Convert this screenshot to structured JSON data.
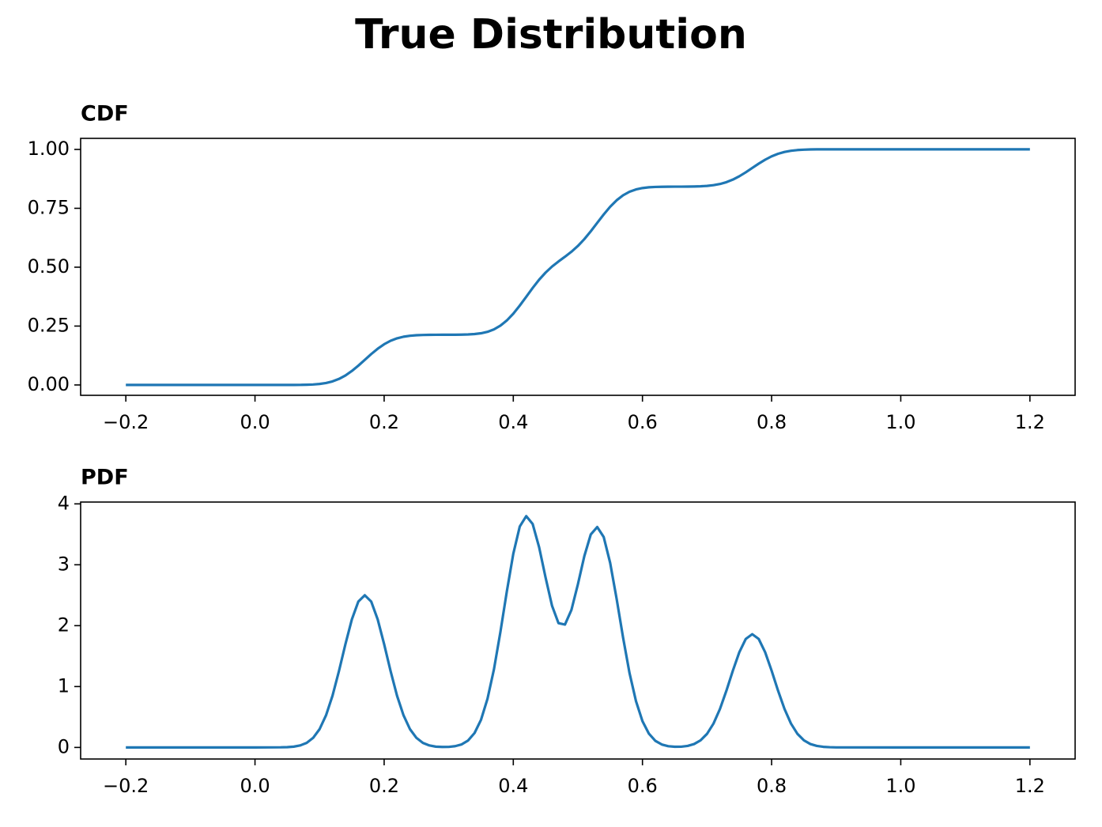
{
  "title": "True Distribution",
  "chart_data": [
    {
      "type": "line",
      "title": "CDF",
      "color": "#1f77b4",
      "grid": false,
      "x": [
        -0.2,
        -0.1,
        0,
        0.04,
        0.05,
        0.06,
        0.07,
        0.08,
        0.09,
        0.1,
        0.11,
        0.12,
        0.13,
        0.14,
        0.15,
        0.16,
        0.17,
        0.18,
        0.19,
        0.2,
        0.21,
        0.22,
        0.23,
        0.24,
        0.25,
        0.26,
        0.27,
        0.28,
        0.29,
        0.3,
        0.31,
        0.32,
        0.33,
        0.34,
        0.35,
        0.36,
        0.37,
        0.38,
        0.39,
        0.4,
        0.41,
        0.42,
        0.43,
        0.44,
        0.45,
        0.46,
        0.47,
        0.48,
        0.49,
        0.5,
        0.51,
        0.52,
        0.53,
        0.54,
        0.55,
        0.56,
        0.57,
        0.58,
        0.59,
        0.6,
        0.61,
        0.62,
        0.63,
        0.64,
        0.65,
        0.66,
        0.67,
        0.68,
        0.69,
        0.7,
        0.71,
        0.72,
        0.73,
        0.74,
        0.75,
        0.76,
        0.77,
        0.78,
        0.79,
        0.8,
        0.81,
        0.82,
        0.83,
        0.84,
        0.85,
        0.86,
        0.87,
        0.88,
        0.89,
        0.9,
        1,
        1.1,
        1.2
      ],
      "values": [
        0,
        0,
        0,
        0,
        0,
        0.0001,
        0.0003,
        0.0009,
        0.002,
        0.0042,
        0.0083,
        0.0151,
        0.0255,
        0.0402,
        0.0593,
        0.0819,
        0.1066,
        0.1312,
        0.1538,
        0.1729,
        0.1876,
        0.198,
        0.2048,
        0.2089,
        0.2111,
        0.2122,
        0.2128,
        0.213,
        0.2131,
        0.2131,
        0.2133,
        0.2136,
        0.2144,
        0.2161,
        0.2195,
        0.2256,
        0.2359,
        0.2517,
        0.2739,
        0.3027,
        0.337,
        0.3743,
        0.4119,
        0.4469,
        0.4772,
        0.5027,
        0.5243,
        0.5444,
        0.5656,
        0.5901,
        0.6192,
        0.6526,
        0.6884,
        0.724,
        0.7566,
        0.7841,
        0.8053,
        0.8203,
        0.8301,
        0.836,
        0.8392,
        0.8407,
        0.8415,
        0.8418,
        0.842,
        0.8421,
        0.8423,
        0.8427,
        0.8435,
        0.8451,
        0.8482,
        0.8532,
        0.861,
        0.8719,
        0.8861,
        0.9029,
        0.9213,
        0.9396,
        0.9564,
        0.9706,
        0.9815,
        0.9893,
        0.9944,
        0.9974,
        0.999,
        0.9999,
        1.0003,
        1.0004,
        1.0005,
        1.0005,
        1.0005,
        1.0005,
        1.0005
      ],
      "xlim": [
        -0.27,
        1.27
      ],
      "xticks": [
        {
          "value": -0.2,
          "label": "−0.2"
        },
        {
          "value": 0,
          "label": "0.0"
        },
        0.2,
        0.4,
        0.6,
        0.8,
        {
          "value": 1,
          "label": "1.0"
        },
        1.2
      ],
      "ylim": [
        -0.044,
        1.047
      ],
      "yticks": [
        {
          "value": 0,
          "label": "0.00"
        },
        {
          "value": 0.25,
          "label": "0.25"
        },
        {
          "value": 0.5,
          "label": "0.50"
        },
        {
          "value": 0.75,
          "label": "0.75"
        },
        {
          "value": 1,
          "label": "1.00"
        }
      ]
    },
    {
      "type": "line",
      "title": "PDF",
      "color": "#1f77b4",
      "grid": false,
      "x": [
        -0.2,
        -0.1,
        0,
        0.04,
        0.05,
        0.06,
        0.07,
        0.08,
        0.09,
        0.1,
        0.11,
        0.12,
        0.13,
        0.14,
        0.15,
        0.16,
        0.17,
        0.18,
        0.19,
        0.2,
        0.21,
        0.22,
        0.23,
        0.24,
        0.25,
        0.26,
        0.27,
        0.28,
        0.29,
        0.3,
        0.31,
        0.32,
        0.33,
        0.34,
        0.35,
        0.36,
        0.37,
        0.38,
        0.39,
        0.4,
        0.41,
        0.42,
        0.43,
        0.44,
        0.45,
        0.46,
        0.47,
        0.48,
        0.49,
        0.5,
        0.51,
        0.52,
        0.53,
        0.54,
        0.55,
        0.56,
        0.57,
        0.58,
        0.59,
        0.6,
        0.61,
        0.62,
        0.63,
        0.64,
        0.65,
        0.66,
        0.67,
        0.68,
        0.69,
        0.7,
        0.71,
        0.72,
        0.73,
        0.74,
        0.75,
        0.76,
        0.77,
        0.78,
        0.79,
        0.8,
        0.81,
        0.82,
        0.83,
        0.84,
        0.85,
        0.86,
        0.87,
        0.88,
        0.89,
        0.9,
        1,
        1.1,
        1.2
      ],
      "values": [
        0,
        0,
        0,
        0.002,
        0.005,
        0.013,
        0.033,
        0.075,
        0.157,
        0.3,
        0.528,
        0.848,
        1.253,
        1.695,
        2.103,
        2.395,
        2.5,
        2.395,
        2.103,
        1.695,
        1.253,
        0.848,
        0.528,
        0.3,
        0.157,
        0.075,
        0.033,
        0.013,
        0.008,
        0.009,
        0.021,
        0.05,
        0.114,
        0.237,
        0.454,
        0.798,
        1.281,
        1.894,
        2.563,
        3.181,
        3.628,
        3.799,
        3.669,
        3.287,
        2.789,
        2.326,
        2.041,
        2.018,
        2.258,
        2.678,
        3.142,
        3.499,
        3.62,
        3.456,
        3.031,
        2.441,
        1.804,
        1.22,
        0.76,
        0.432,
        0.226,
        0.108,
        0.048,
        0.02,
        0.011,
        0.012,
        0.025,
        0.056,
        0.117,
        0.223,
        0.392,
        0.631,
        0.932,
        1.261,
        1.564,
        1.782,
        1.86,
        1.782,
        1.564,
        1.261,
        0.932,
        0.631,
        0.392,
        0.223,
        0.117,
        0.056,
        0.025,
        0.01,
        0.004,
        0.001,
        0,
        0,
        0
      ],
      "xlim": [
        -0.27,
        1.27
      ],
      "xticks": [
        {
          "value": -0.2,
          "label": "−0.2"
        },
        {
          "value": 0,
          "label": "0.0"
        },
        0.2,
        0.4,
        0.6,
        0.8,
        {
          "value": 1,
          "label": "1.0"
        },
        1.2
      ],
      "ylim": [
        -0.19,
        4.03
      ],
      "yticks": [
        0,
        1,
        2,
        3,
        4
      ]
    }
  ]
}
